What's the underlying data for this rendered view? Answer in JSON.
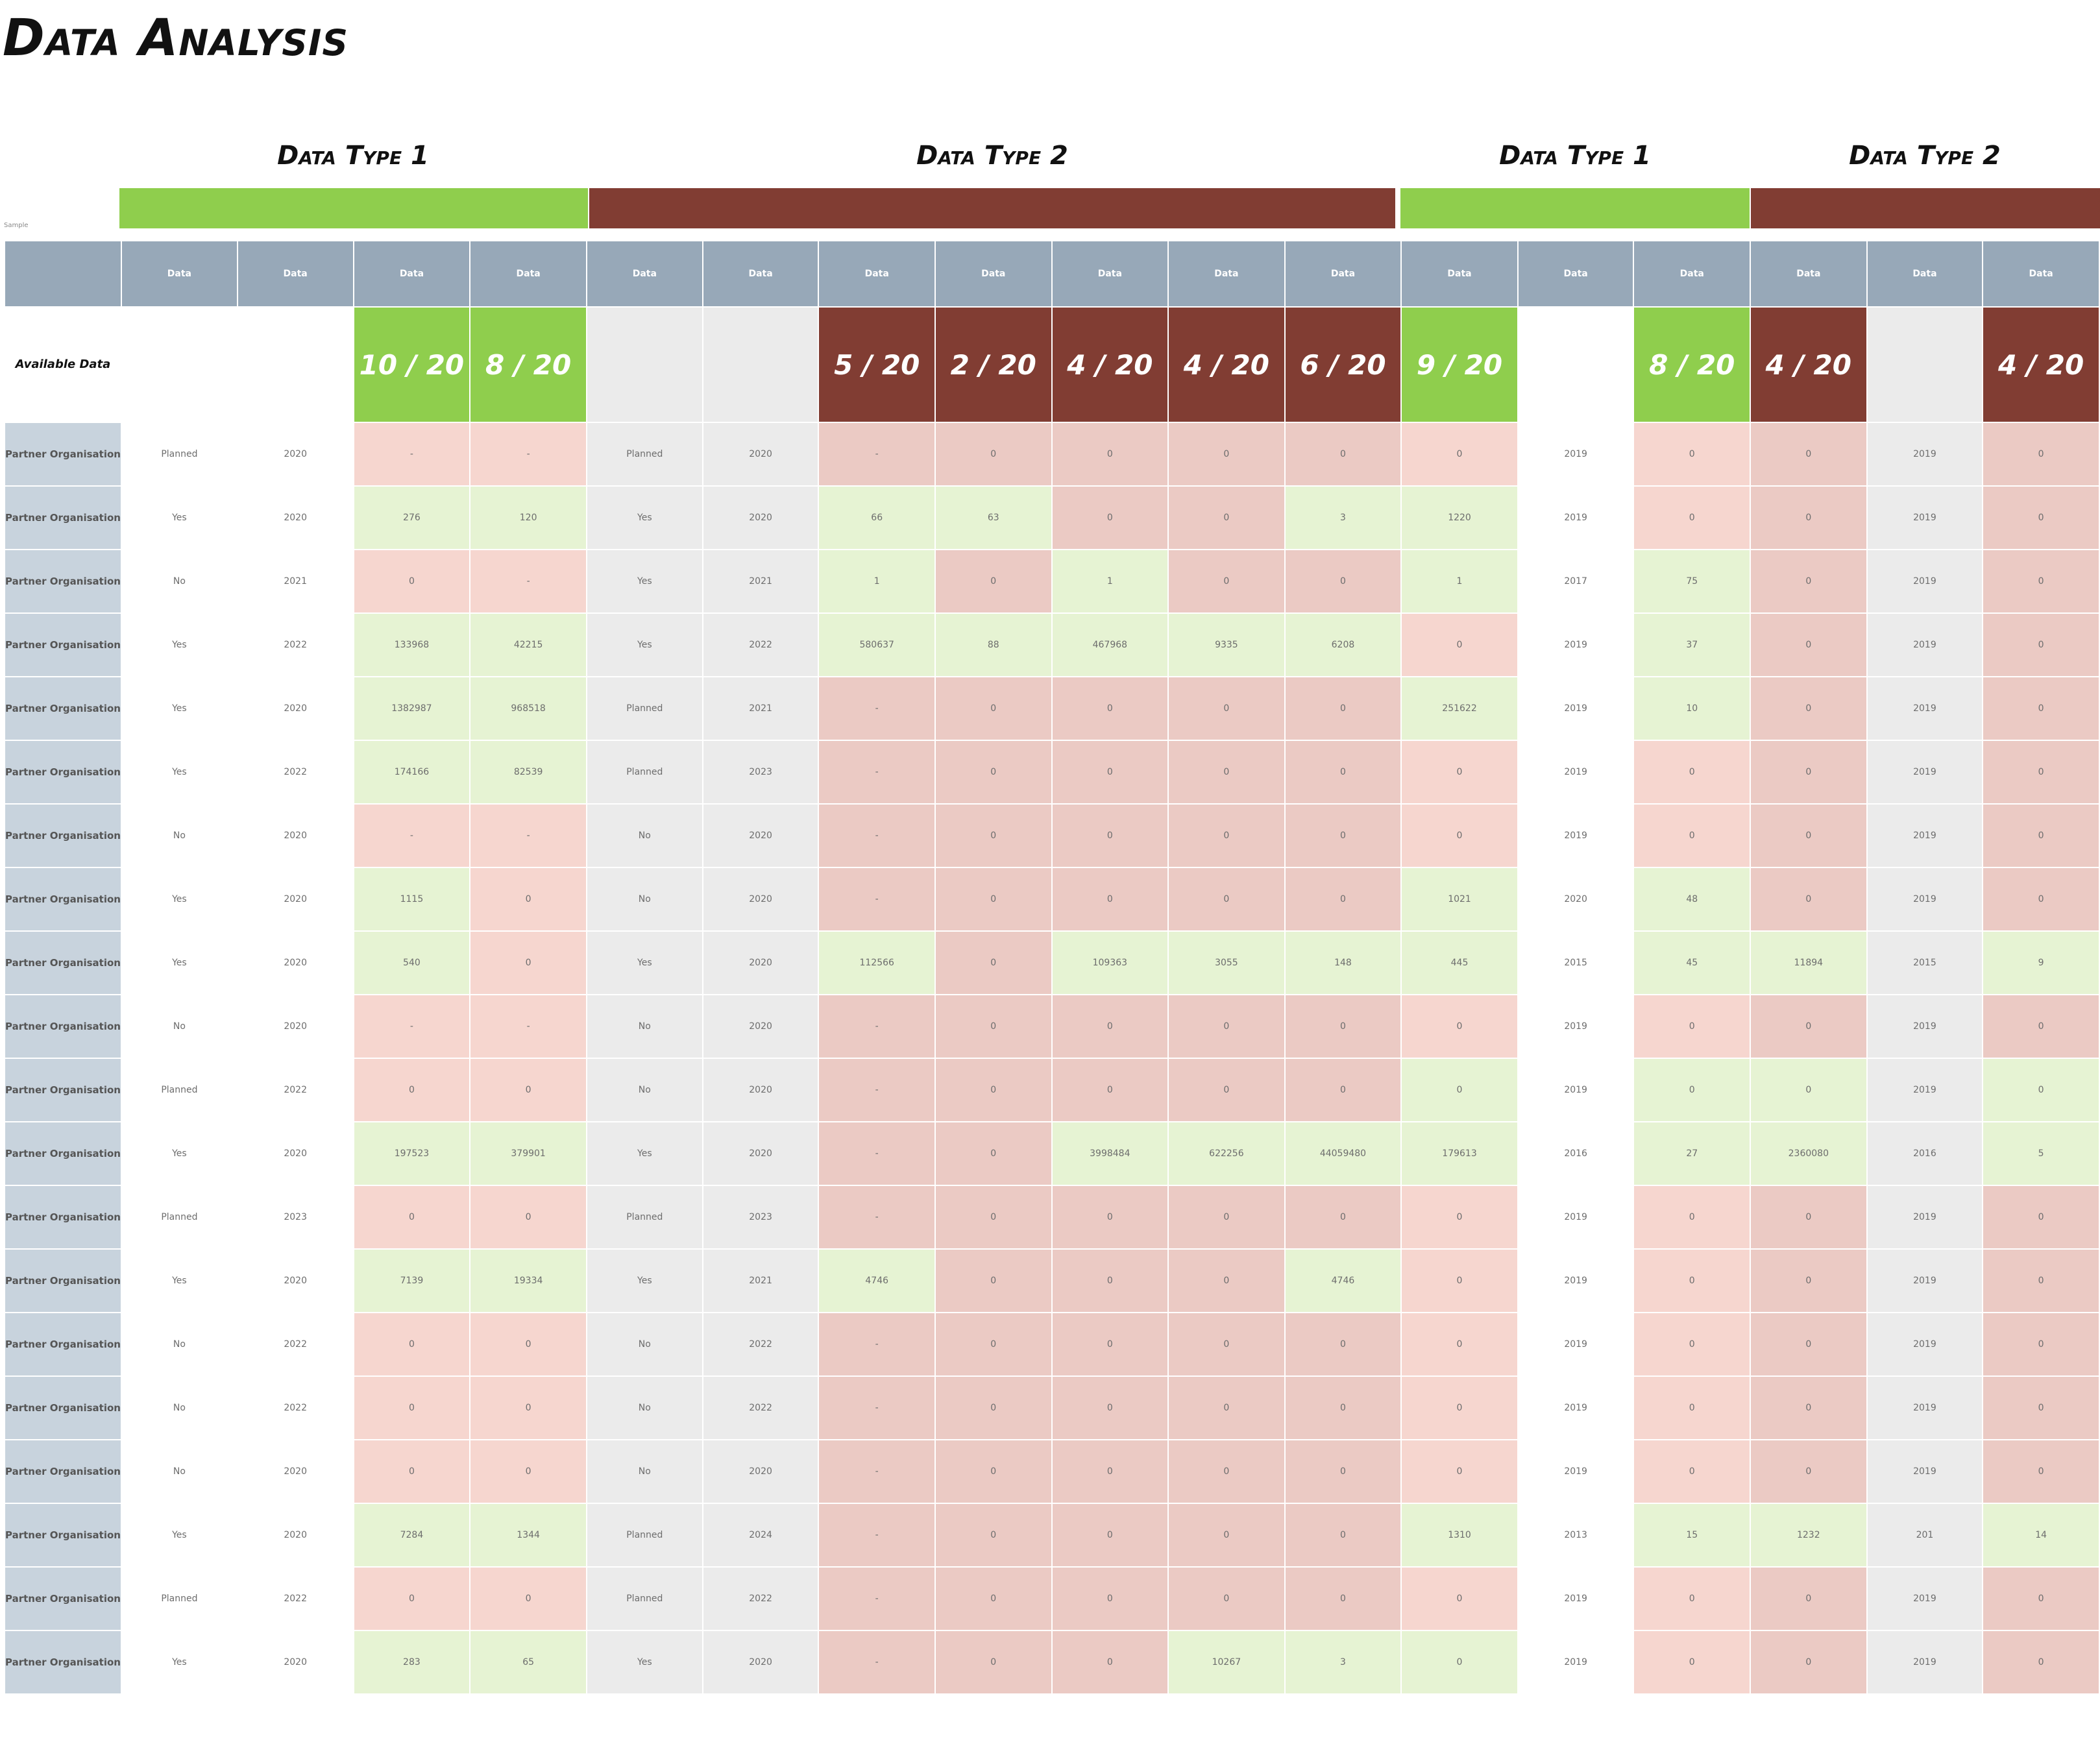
{
  "title": "Data Analysis",
  "groups": [
    {
      "label": "Data Type 1",
      "color": "#8fce4d"
    },
    {
      "label": "Data Type 2",
      "color": "#813d33"
    },
    {
      "label": "Data Type 1",
      "color": "#8fce4d"
    },
    {
      "label": "Data Type 2",
      "color": "#813d33"
    }
  ],
  "note": "Sample",
  "header_label": "Data",
  "available_label": "Available Data",
  "available": [
    "",
    "",
    "10 / 20",
    "8 / 20",
    "",
    "",
    "5 / 20",
    "2 / 20",
    "4 / 20",
    "4 / 20",
    "6 / 20",
    "9 / 20",
    "",
    "8 / 20",
    "4 / 20",
    "",
    "4 / 20"
  ],
  "available_style": [
    "w",
    "w",
    "ag",
    "ag",
    "gr",
    "gr",
    "ab",
    "ab",
    "ab",
    "ab",
    "ab",
    "ag",
    "w",
    "ag",
    "ab",
    "gr",
    "ab"
  ],
  "row_label": "Partner Organisation",
  "rows": [
    {
      "v": [
        "Planned",
        "2020",
        "-",
        "-",
        "Planned",
        "2020",
        "-",
        "0",
        "0",
        "0",
        "0",
        "0",
        "2019",
        "0",
        "0",
        "2019",
        "0"
      ],
      "s": [
        "w",
        "w",
        "r",
        "r",
        "gr",
        "gr",
        "dr",
        "dr",
        "dr",
        "dr",
        "dr",
        "r",
        "w",
        "r",
        "dr",
        "gr",
        "dr"
      ]
    },
    {
      "v": [
        "Yes",
        "2020",
        "276",
        "120",
        "Yes",
        "2020",
        "66",
        "63",
        "0",
        "0",
        "3",
        "1220",
        "2019",
        "0",
        "0",
        "2019",
        "0"
      ],
      "s": [
        "w",
        "w",
        "g",
        "g",
        "gr",
        "gr",
        "g",
        "g",
        "dr",
        "dr",
        "g",
        "g",
        "w",
        "r",
        "dr",
        "gr",
        "dr"
      ]
    },
    {
      "v": [
        "No",
        "2021",
        "0",
        "-",
        "Yes",
        "2021",
        "1",
        "0",
        "1",
        "0",
        "0",
        "1",
        "2017",
        "75",
        "0",
        "2019",
        "0"
      ],
      "s": [
        "w",
        "w",
        "r",
        "r",
        "gr",
        "gr",
        "g",
        "dr",
        "g",
        "dr",
        "dr",
        "g",
        "w",
        "g",
        "dr",
        "gr",
        "dr"
      ]
    },
    {
      "v": [
        "Yes",
        "2022",
        "133968",
        "42215",
        "Yes",
        "2022",
        "580637",
        "88",
        "467968",
        "9335",
        "6208",
        "0",
        "2019",
        "37",
        "0",
        "2019",
        "0"
      ],
      "s": [
        "w",
        "w",
        "g",
        "g",
        "gr",
        "gr",
        "g",
        "g",
        "g",
        "g",
        "g",
        "r",
        "w",
        "g",
        "dr",
        "gr",
        "dr"
      ]
    },
    {
      "v": [
        "Yes",
        "2020",
        "1382987",
        "968518",
        "Planned",
        "2021",
        "-",
        "0",
        "0",
        "0",
        "0",
        "251622",
        "2019",
        "10",
        "0",
        "2019",
        "0"
      ],
      "s": [
        "w",
        "w",
        "g",
        "g",
        "gr",
        "gr",
        "dr",
        "dr",
        "dr",
        "dr",
        "dr",
        "g",
        "w",
        "g",
        "dr",
        "gr",
        "dr"
      ]
    },
    {
      "v": [
        "Yes",
        "2022",
        "174166",
        "82539",
        "Planned",
        "2023",
        "-",
        "0",
        "0",
        "0",
        "0",
        "0",
        "2019",
        "0",
        "0",
        "2019",
        "0"
      ],
      "s": [
        "w",
        "w",
        "g",
        "g",
        "gr",
        "gr",
        "dr",
        "dr",
        "dr",
        "dr",
        "dr",
        "r",
        "w",
        "r",
        "dr",
        "gr",
        "dr"
      ]
    },
    {
      "v": [
        "No",
        "2020",
        "-",
        "-",
        "No",
        "2020",
        "-",
        "0",
        "0",
        "0",
        "0",
        "0",
        "2019",
        "0",
        "0",
        "2019",
        "0"
      ],
      "s": [
        "w",
        "w",
        "r",
        "r",
        "gr",
        "gr",
        "dr",
        "dr",
        "dr",
        "dr",
        "dr",
        "r",
        "w",
        "r",
        "dr",
        "gr",
        "dr"
      ]
    },
    {
      "v": [
        "Yes",
        "2020",
        "1115",
        "0",
        "No",
        "2020",
        "-",
        "0",
        "0",
        "0",
        "0",
        "1021",
        "2020",
        "48",
        "0",
        "2019",
        "0"
      ],
      "s": [
        "w",
        "w",
        "g",
        "r",
        "gr",
        "gr",
        "dr",
        "dr",
        "dr",
        "dr",
        "dr",
        "g",
        "w",
        "g",
        "dr",
        "gr",
        "dr"
      ]
    },
    {
      "v": [
        "Yes",
        "2020",
        "540",
        "0",
        "Yes",
        "2020",
        "112566",
        "0",
        "109363",
        "3055",
        "148",
        "445",
        "2015",
        "45",
        "11894",
        "2015",
        "9"
      ],
      "s": [
        "w",
        "w",
        "g",
        "r",
        "gr",
        "gr",
        "g",
        "dr",
        "g",
        "g",
        "g",
        "g",
        "w",
        "g",
        "g",
        "gr",
        "g"
      ]
    },
    {
      "v": [
        "No",
        "2020",
        "-",
        "-",
        "No",
        "2020",
        "-",
        "0",
        "0",
        "0",
        "0",
        "0",
        "2019",
        "0",
        "0",
        "2019",
        "0"
      ],
      "s": [
        "w",
        "w",
        "r",
        "r",
        "gr",
        "gr",
        "dr",
        "dr",
        "dr",
        "dr",
        "dr",
        "r",
        "w",
        "r",
        "dr",
        "gr",
        "dr"
      ]
    },
    {
      "v": [
        "Planned",
        "2022",
        "0",
        "0",
        "No",
        "2020",
        "-",
        "0",
        "0",
        "0",
        "0",
        "0",
        "2019",
        "0",
        "0",
        "2019",
        "0"
      ],
      "s": [
        "w",
        "w",
        "r",
        "r",
        "gr",
        "gr",
        "dr",
        "dr",
        "dr",
        "dr",
        "dr",
        "g",
        "w",
        "g",
        "g",
        "gr",
        "g"
      ]
    },
    {
      "v": [
        "Yes",
        "2020",
        "197523",
        "379901",
        "Yes",
        "2020",
        "-",
        "0",
        "3998484",
        "622256",
        "44059480",
        "179613",
        "2016",
        "27",
        "2360080",
        "2016",
        "5"
      ],
      "s": [
        "w",
        "w",
        "g",
        "g",
        "gr",
        "gr",
        "dr",
        "dr",
        "g",
        "g",
        "g",
        "g",
        "w",
        "g",
        "g",
        "gr",
        "g"
      ]
    },
    {
      "v": [
        "Planned",
        "2023",
        "0",
        "0",
        "Planned",
        "2023",
        "-",
        "0",
        "0",
        "0",
        "0",
        "0",
        "2019",
        "0",
        "0",
        "2019",
        "0"
      ],
      "s": [
        "w",
        "w",
        "r",
        "r",
        "gr",
        "gr",
        "dr",
        "dr",
        "dr",
        "dr",
        "dr",
        "r",
        "w",
        "r",
        "dr",
        "gr",
        "dr"
      ]
    },
    {
      "v": [
        "Yes",
        "2020",
        "7139",
        "19334",
        "Yes",
        "2021",
        "4746",
        "0",
        "0",
        "0",
        "4746",
        "0",
        "2019",
        "0",
        "0",
        "2019",
        "0"
      ],
      "s": [
        "w",
        "w",
        "g",
        "g",
        "gr",
        "gr",
        "g",
        "dr",
        "dr",
        "dr",
        "g",
        "r",
        "w",
        "r",
        "dr",
        "gr",
        "dr"
      ]
    },
    {
      "v": [
        "No",
        "2022",
        "0",
        "0",
        "No",
        "2022",
        "-",
        "0",
        "0",
        "0",
        "0",
        "0",
        "2019",
        "0",
        "0",
        "2019",
        "0"
      ],
      "s": [
        "w",
        "w",
        "r",
        "r",
        "gr",
        "gr",
        "dr",
        "dr",
        "dr",
        "dr",
        "dr",
        "r",
        "w",
        "r",
        "dr",
        "gr",
        "dr"
      ]
    },
    {
      "v": [
        "No",
        "2022",
        "0",
        "0",
        "No",
        "2022",
        "-",
        "0",
        "0",
        "0",
        "0",
        "0",
        "2019",
        "0",
        "0",
        "2019",
        "0"
      ],
      "s": [
        "w",
        "w",
        "r",
        "r",
        "gr",
        "gr",
        "dr",
        "dr",
        "dr",
        "dr",
        "dr",
        "r",
        "w",
        "r",
        "dr",
        "gr",
        "dr"
      ]
    },
    {
      "v": [
        "No",
        "2020",
        "0",
        "0",
        "No",
        "2020",
        "-",
        "0",
        "0",
        "0",
        "0",
        "0",
        "2019",
        "0",
        "0",
        "2019",
        "0"
      ],
      "s": [
        "w",
        "w",
        "r",
        "r",
        "gr",
        "gr",
        "dr",
        "dr",
        "dr",
        "dr",
        "dr",
        "r",
        "w",
        "r",
        "dr",
        "gr",
        "dr"
      ]
    },
    {
      "v": [
        "Yes",
        "2020",
        "7284",
        "1344",
        "Planned",
        "2024",
        "-",
        "0",
        "0",
        "0",
        "0",
        "1310",
        "2013",
        "15",
        "1232",
        "201",
        "14"
      ],
      "s": [
        "w",
        "w",
        "g",
        "g",
        "gr",
        "gr",
        "dr",
        "dr",
        "dr",
        "dr",
        "dr",
        "g",
        "w",
        "g",
        "g",
        "gr",
        "g"
      ]
    },
    {
      "v": [
        "Planned",
        "2022",
        "0",
        "0",
        "Planned",
        "2022",
        "-",
        "0",
        "0",
        "0",
        "0",
        "0",
        "2019",
        "0",
        "0",
        "2019",
        "0"
      ],
      "s": [
        "w",
        "w",
        "r",
        "r",
        "gr",
        "gr",
        "dr",
        "dr",
        "dr",
        "dr",
        "dr",
        "r",
        "w",
        "r",
        "dr",
        "gr",
        "dr"
      ]
    },
    {
      "v": [
        "Yes",
        "2020",
        "283",
        "65",
        "Yes",
        "2020",
        "-",
        "0",
        "0",
        "10267",
        "3",
        "0",
        "2019",
        "0",
        "0",
        "2019",
        "0"
      ],
      "s": [
        "w",
        "w",
        "g",
        "g",
        "gr",
        "gr",
        "dr",
        "dr",
        "dr",
        "g",
        "g",
        "g",
        "w",
        "r",
        "dr",
        "gr",
        "dr"
      ]
    }
  ]
}
